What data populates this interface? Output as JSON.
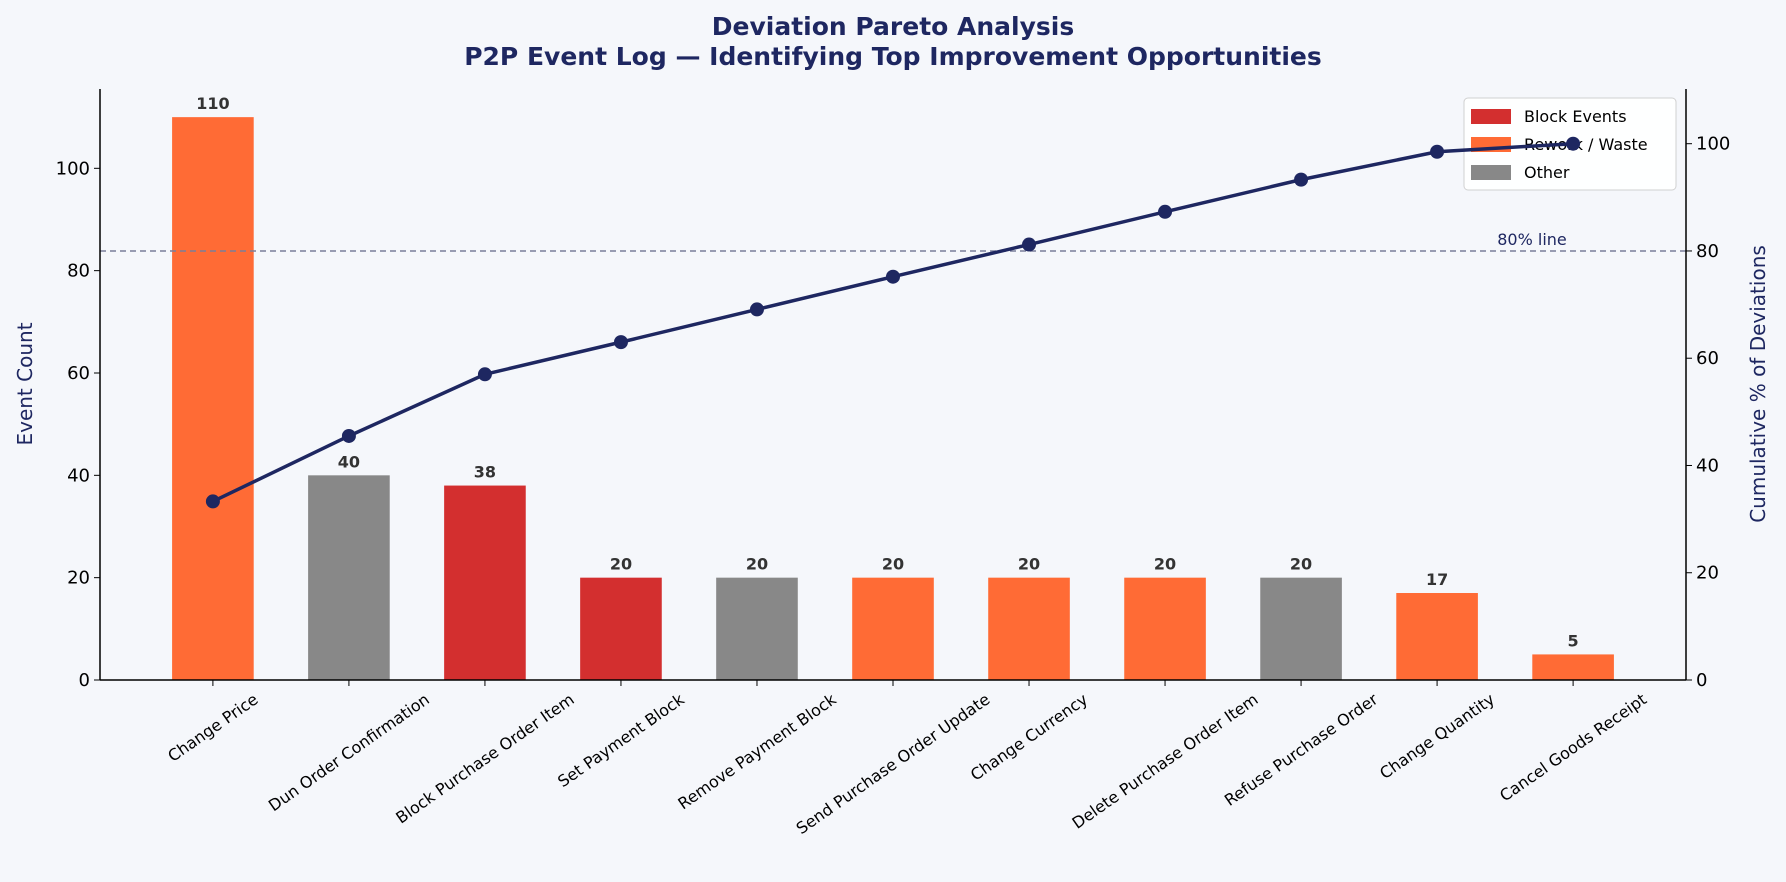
{
  "chart_data": {
    "type": "bar+line",
    "title": "Deviation Pareto Analysis",
    "subtitle": "P2P Event Log — Identifying Top Improvement Opportunities",
    "ylabel": "Event Count",
    "ylabel_right": "Cumulative % of Deviations",
    "ylim": [
      0,
      115.5
    ],
    "ylim_right": [
      0,
      110.2
    ],
    "yticks": [
      0,
      20,
      40,
      60,
      80,
      100
    ],
    "yticks_right": [
      0,
      20,
      40,
      60,
      80,
      100
    ],
    "grid": false,
    "legend_position": "top-right",
    "categories": [
      "Change Price",
      "Dun Order Confirmation",
      "Block Purchase Order Item",
      "Set Payment Block",
      "Remove Payment Block",
      "Send Purchase Order Update",
      "Change Currency",
      "Delete Purchase Order Item",
      "Refuse Purchase Order",
      "Change Quantity",
      "Cancel Goods Receipt"
    ],
    "values": [
      110,
      40,
      38,
      20,
      20,
      20,
      20,
      20,
      20,
      17,
      5
    ],
    "groups": [
      "Rework / Waste",
      "Other",
      "Block Events",
      "Block Events",
      "Other",
      "Rework / Waste",
      "Rework / Waste",
      "Rework / Waste",
      "Other",
      "Rework / Waste",
      "Rework / Waste"
    ],
    "cumulative_pct": [
      33.3,
      45.5,
      57.0,
      63.0,
      69.1,
      75.2,
      81.2,
      87.3,
      93.3,
      98.5,
      100.0
    ],
    "legend": [
      {
        "name": "Block Events",
        "color": "#d32f2f"
      },
      {
        "name": "Rework / Waste",
        "color": "#ff6b35"
      },
      {
        "name": "Other",
        "color": "#888888"
      }
    ],
    "reference_line": {
      "value": 80,
      "label": "80% line",
      "color": "#1e2761"
    },
    "line_color": "#1e2761"
  }
}
